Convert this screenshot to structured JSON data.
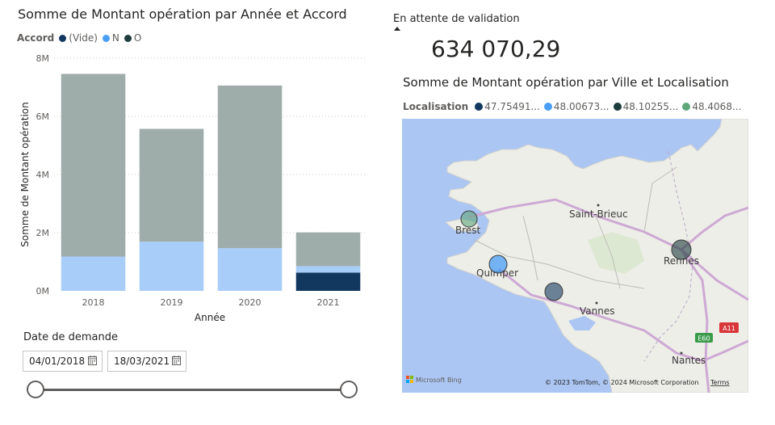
{
  "bar_chart": {
    "title": "Somme de Montant opération par Année et Accord",
    "legend_title": "Accord",
    "legend_items": [
      {
        "label": "(Vide)",
        "color": "#12385f"
      },
      {
        "label": "N",
        "color": "#4a9ef5"
      },
      {
        "label": "O",
        "color": "#1e3d3c"
      }
    ]
  },
  "chart_data": {
    "type": "bar",
    "stacked": true,
    "title": "Somme de Montant opération par Année et Accord",
    "xlabel": "Année",
    "ylabel": "Somme de Montant opération",
    "categories": [
      "2018",
      "2019",
      "2020",
      "2021"
    ],
    "y_ticks": [
      "0M",
      "2M",
      "4M",
      "6M",
      "8M"
    ],
    "ylim": [
      0,
      8
    ],
    "unit": "M",
    "series": [
      {
        "name": "(Vide)",
        "color": "#12385f",
        "values": [
          0,
          0,
          0,
          0.63
        ]
      },
      {
        "name": "N",
        "color": "#a9cdf9",
        "values": [
          1.18,
          1.69,
          1.47,
          0.22
        ]
      },
      {
        "name": "O",
        "color": "#9fadaa",
        "values": [
          6.28,
          3.88,
          5.59,
          1.16
        ]
      }
    ]
  },
  "slicer": {
    "title": "Date de demande",
    "start_date": "04/01/2018",
    "end_date": "18/03/2021",
    "range_fraction": [
      0,
      1
    ]
  },
  "card": {
    "label": "En attente de validation",
    "value": "634 070,29"
  },
  "map": {
    "title": "Somme de Montant opération par Ville et Localisation",
    "legend_title": "Localisation",
    "legend_items": [
      {
        "label": "47.75491...",
        "color": "#12385f"
      },
      {
        "label": "48.00673...",
        "color": "#4a9ef5"
      },
      {
        "label": "48.10255...",
        "color": "#1e3d3c"
      },
      {
        "label": "48.4068...",
        "color": "#5fa77b"
      }
    ],
    "cities": [
      "Brest",
      "Saint-Brieuc",
      "Rennes",
      "Quimper",
      "Vannes",
      "Nantes"
    ],
    "road_labels": [
      "E60",
      "A11"
    ],
    "attribution": "© 2023 TomTom, © 2024 Microsoft Corporation",
    "terms": "Terms",
    "provider": "Microsoft Bing"
  }
}
